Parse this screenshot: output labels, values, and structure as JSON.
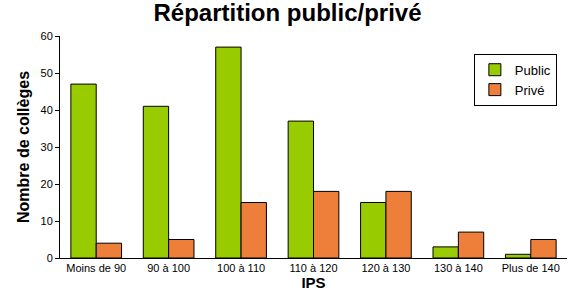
{
  "chart_data": {
    "type": "bar",
    "title": "Répartition public/privé",
    "x_label": "IPS",
    "y_label": "Nombre de collèges",
    "categories": [
      "Moins de 90",
      "90 à 100",
      "100 à 110",
      "110 à 120",
      "120 à 130",
      "130 à 140",
      "Plus de 140"
    ],
    "series": [
      {
        "name": "Public",
        "color": "#99cc00",
        "values": [
          47,
          41,
          57,
          37,
          15,
          3,
          1
        ]
      },
      {
        "name": "Privé",
        "color": "#ee7f3a",
        "values": [
          4,
          5,
          15,
          18,
          18,
          7,
          5
        ]
      }
    ],
    "ylim": [
      0,
      60
    ],
    "yticks": [
      0,
      10,
      20,
      30,
      40,
      50,
      60
    ],
    "grid": false,
    "legend": "top right"
  }
}
